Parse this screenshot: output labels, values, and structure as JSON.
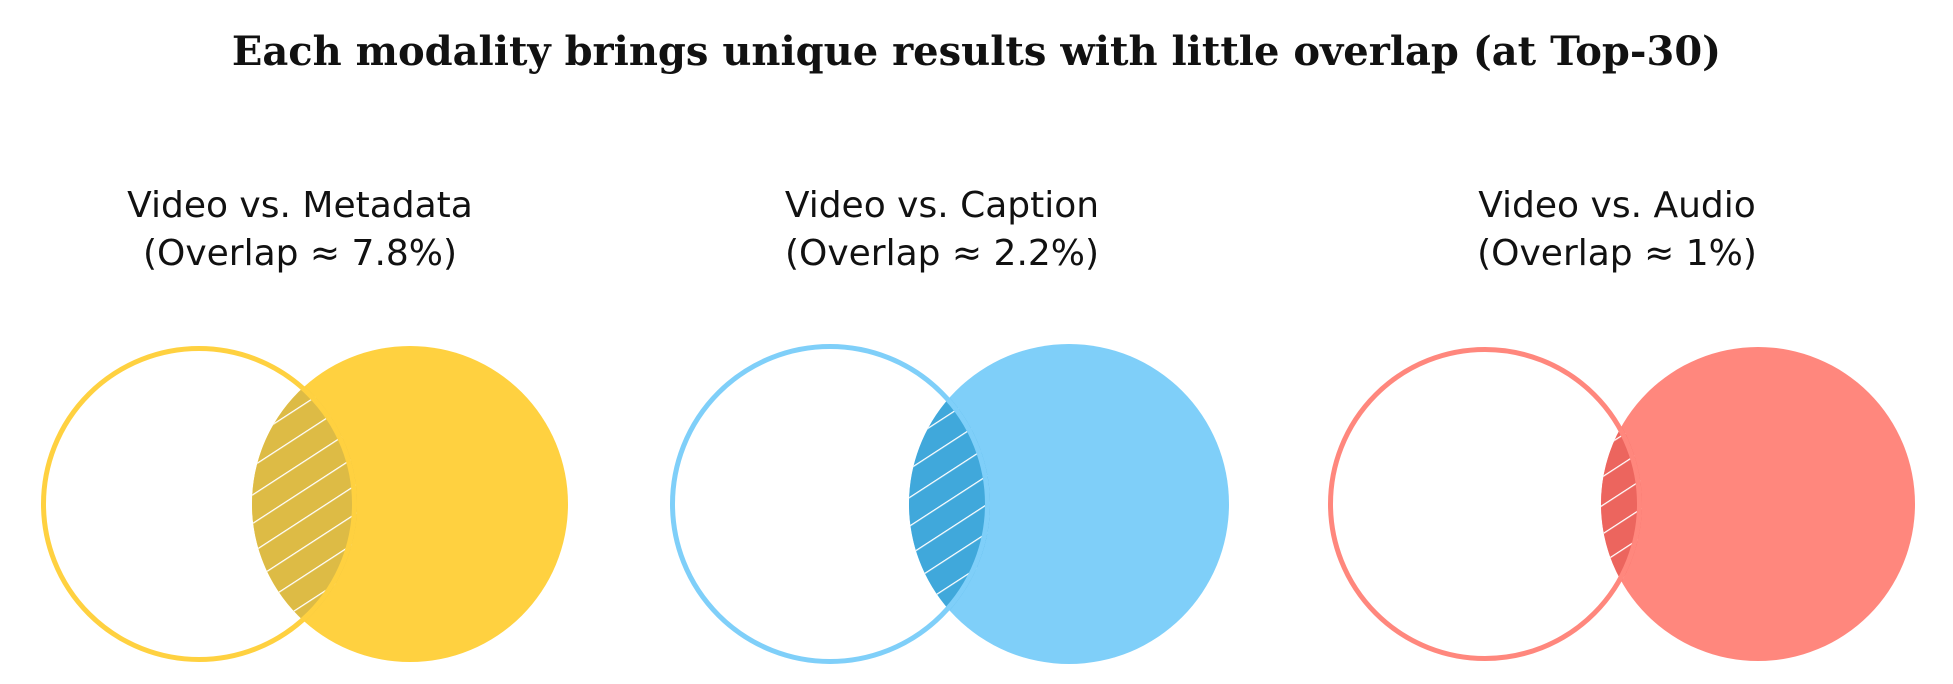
{
  "title": "Each modality brings unique results with little overlap (at Top-30)",
  "panels": [
    {
      "name": "Video vs. Metadata",
      "overlap_label": "(Overlap ≈ 7.8%)",
      "overlap_percent": 7.8,
      "color": "#FFD140",
      "overlap_color": "#DDBB45"
    },
    {
      "name": "Video vs. Caption",
      "overlap_label": "(Overlap ≈ 2.2%)",
      "overlap_percent": 2.2,
      "color": "#7FCFF9",
      "overlap_color": "#40A8DB"
    },
    {
      "name": "Video vs. Audio",
      "overlap_label": "(Overlap ≈ 1%)",
      "overlap_percent": 1,
      "color": "#FF877D",
      "overlap_color": "#EC655E"
    }
  ]
}
